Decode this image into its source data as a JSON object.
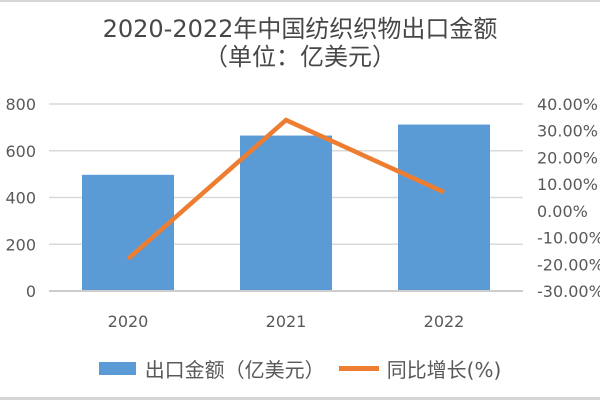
{
  "header": {
    "title_line1": "2020-2022年中国纺织织物出口金额",
    "title_line2": "（单位：亿美元）"
  },
  "colors": {
    "bar": "#5B9BD5",
    "line": "#ED7D31",
    "gridline": "#D9D9D9",
    "axis_line": "#CDCDCD",
    "tick_text": "#595959",
    "title_text": "#474747",
    "edge_border": "#D6D6D6"
  },
  "chart_data": {
    "type": "combo-bar-line",
    "title": "2020-2022年中国纺织织物出口金额（单位：亿美元）",
    "categories": [
      "2020",
      "2021",
      "2022"
    ],
    "series": [
      {
        "name": "出口金额（亿美元）",
        "type": "bar",
        "axis": "left",
        "color": "#5B9BD5",
        "values": [
          497,
          665,
          712
        ]
      },
      {
        "name": "同比增长(%)",
        "type": "line",
        "axis": "right",
        "color": "#ED7D31",
        "values": [
          -18,
          34,
          7
        ]
      }
    ],
    "left_axis": {
      "min": 0,
      "max": 800,
      "tick_labels": [
        "0",
        "200",
        "400",
        "600",
        "800"
      ]
    },
    "right_axis": {
      "min": -30,
      "max": 40,
      "tick_labels": [
        "40.00%",
        "30.00%",
        "20.00%",
        "10.00%",
        "0.00%",
        "-10.00%",
        "-20.00%",
        "-30.00%"
      ]
    },
    "grid": true,
    "legend_position": "bottom"
  }
}
